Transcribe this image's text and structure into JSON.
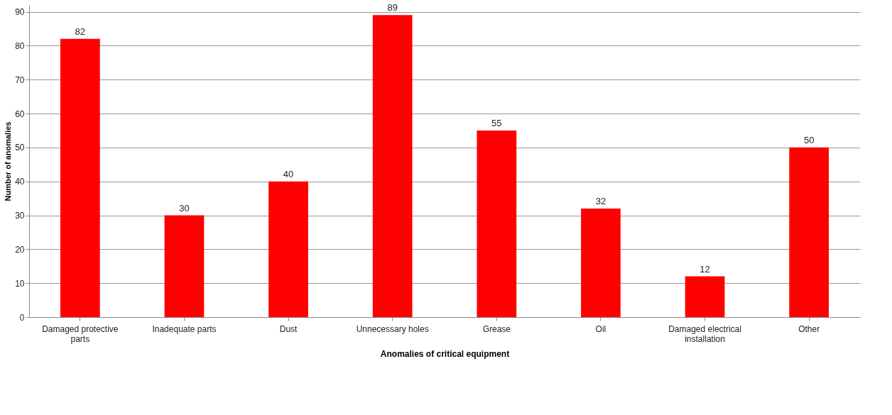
{
  "chart_data": {
    "type": "bar",
    "xlabel": "Anomalies of critical equipment",
    "ylabel": "Number of anomalies",
    "categories": [
      "Damaged protective parts",
      "Inadequate parts",
      "Dust",
      "Unnecessary holes",
      "Grease",
      "Oil",
      "Damaged electrical installation",
      "Other"
    ],
    "values": [
      82,
      30,
      40,
      89,
      55,
      32,
      12,
      50
    ],
    "color": "#ff0000",
    "ylim": [
      0,
      92
    ],
    "yticks": [
      0,
      10,
      20,
      30,
      40,
      50,
      60,
      70,
      80,
      90
    ],
    "grid": "y",
    "data_labels": true
  }
}
